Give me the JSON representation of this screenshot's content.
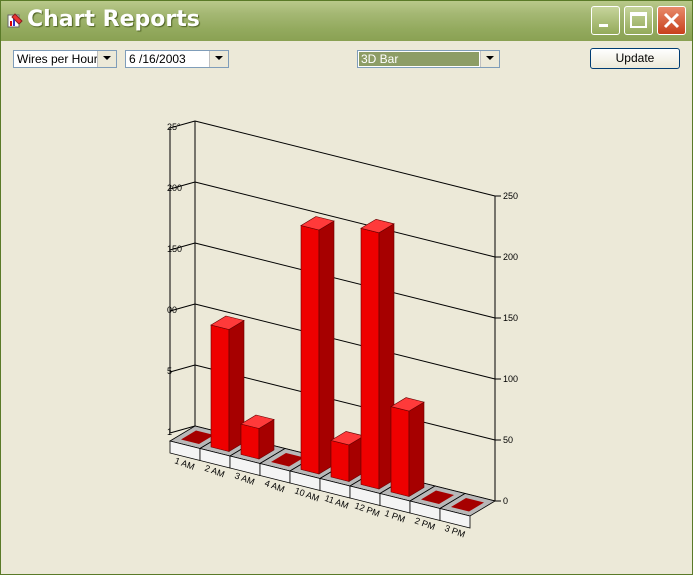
{
  "window": {
    "title": "Chart Reports"
  },
  "toolbar": {
    "metric": "Wires per Hour",
    "date": "6 /16/2003",
    "chart_type": "3D Bar",
    "update_label": "Update"
  },
  "colors": {
    "bar": "#ee0000",
    "bar_dark": "#a60000",
    "bar_top": "#ff3a3a",
    "accent": "#8d9d66"
  },
  "chart_data": {
    "type": "bar",
    "title": "",
    "xlabel": "",
    "ylabel": "",
    "ylim": [
      0,
      250
    ],
    "yticks": [
      0,
      50,
      100,
      150,
      200,
      250
    ],
    "left_axis_labels": [
      "1",
      "5",
      "00",
      "150",
      "200",
      "25°"
    ],
    "categories": [
      "1 AM",
      "2 AM",
      "3 AM",
      "4 AM",
      "10 AM",
      "11 AM",
      "12 PM",
      "1 PM",
      "2 PM",
      "3 PM"
    ],
    "values": [
      0,
      100,
      25,
      0,
      200,
      30,
      210,
      70,
      0,
      0
    ]
  }
}
